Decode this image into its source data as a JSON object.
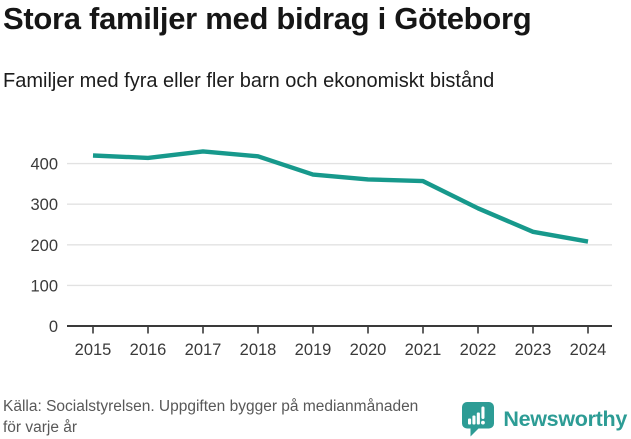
{
  "title": "Stora familjer med bidrag i Göteborg",
  "subtitle": "Familjer med fyra eller fler barn och ekonomiskt bistånd",
  "footer": {
    "source_line1": "Källa: Socialstyrelsen. Uppgiften bygger på medianmånaden",
    "source_line2": "för varje år",
    "brand": "Newsworthy"
  },
  "colors": {
    "line": "#17998c",
    "brand_teal": "#2d9c95",
    "grid": "#e2e2e2",
    "axis": "#3a3a3a",
    "tick_text": "#3a3a3a",
    "title_text": "#161616",
    "muted_text": "#585858"
  },
  "chart_data": {
    "type": "line",
    "x": [
      2015,
      2016,
      2017,
      2018,
      2019,
      2020,
      2021,
      2022,
      2023,
      2024
    ],
    "series": [
      {
        "name": "Familjer med fyra eller fler barn och ekonomiskt bistånd",
        "values": [
          420,
          414,
          430,
          418,
          373,
          361,
          357,
          290,
          232,
          208
        ]
      }
    ],
    "title": "Stora familjer med bidrag i Göteborg",
    "xlabel": "",
    "ylabel": "",
    "ylim": [
      0,
      450
    ],
    "yticks": [
      0,
      100,
      200,
      300,
      400
    ],
    "grid": true,
    "legend": "none"
  }
}
